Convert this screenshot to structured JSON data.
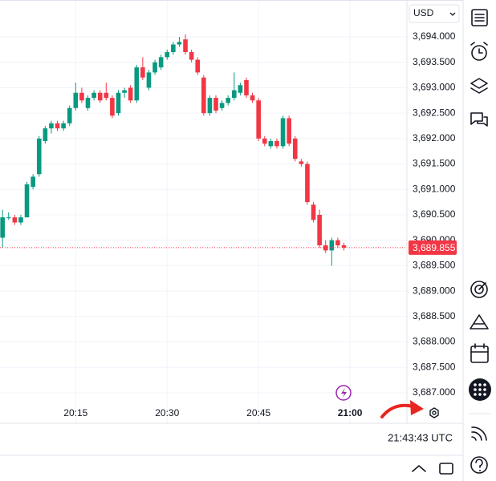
{
  "chart_data": {
    "type": "candlestick",
    "x": [
      "20:03",
      "20:04",
      "20:05",
      "20:06",
      "20:07",
      "20:08",
      "20:09",
      "20:10",
      "20:11",
      "20:12",
      "20:13",
      "20:14",
      "20:15",
      "20:16",
      "20:17",
      "20:18",
      "20:19",
      "20:20",
      "20:21",
      "20:22",
      "20:23",
      "20:24",
      "20:25",
      "20:26",
      "20:27",
      "20:28",
      "20:29",
      "20:30",
      "20:31",
      "20:32",
      "20:33",
      "20:34",
      "20:35",
      "20:36",
      "20:37",
      "20:38",
      "20:39",
      "20:40",
      "20:41",
      "20:42",
      "20:43",
      "20:44",
      "20:45",
      "20:46",
      "20:47",
      "20:48",
      "20:49",
      "20:50",
      "20:51",
      "20:52",
      "20:53",
      "20:54",
      "20:55",
      "20:56",
      "20:57",
      "20:58",
      "20:59"
    ],
    "open": [
      3690.05,
      3690.45,
      3690.45,
      3690.35,
      3690.45,
      3691.05,
      3691.3,
      3691.95,
      3692.2,
      3692.3,
      3692.2,
      3692.3,
      3692.6,
      3692.9,
      3692.6,
      3692.8,
      3692.9,
      3692.9,
      3692.8,
      3692.5,
      3692.9,
      3693.0,
      3692.75,
      3693.4,
      3693.0,
      3693.3,
      3693.4,
      3693.6,
      3693.7,
      3693.85,
      3693.95,
      3693.7,
      3693.55,
      3693.2,
      3692.5,
      3692.8,
      3692.6,
      3692.7,
      3692.8,
      3692.9,
      3693.15,
      3692.85,
      3692.75,
      3692.0,
      3691.85,
      3691.95,
      3691.85,
      3692.4,
      3692.0,
      3691.55,
      3691.5,
      3690.7,
      3690.5,
      3689.9,
      3689.8,
      3690.0,
      3689.9
    ],
    "high": [
      3690.6,
      3690.55,
      3690.5,
      3690.5,
      3691.15,
      3691.3,
      3692.05,
      3692.25,
      3692.35,
      3692.35,
      3692.35,
      3692.65,
      3693.1,
      3693.0,
      3692.85,
      3692.95,
      3692.95,
      3693.1,
      3692.85,
      3692.95,
      3693.0,
      3693.05,
      3693.45,
      3693.6,
      3693.35,
      3693.55,
      3693.65,
      3693.75,
      3693.9,
      3694.0,
      3694.05,
      3693.75,
      3693.6,
      3693.25,
      3692.85,
      3692.85,
      3692.75,
      3692.85,
      3693.3,
      3693.1,
      3693.2,
      3692.9,
      3692.8,
      3692.05,
      3692.0,
      3692.0,
      3692.45,
      3692.45,
      3692.05,
      3691.6,
      3691.55,
      3690.75,
      3690.6,
      3690.0,
      3690.05,
      3690.05,
      3689.95
    ],
    "low": [
      3689.85,
      3690.4,
      3690.3,
      3690.3,
      3690.45,
      3691.0,
      3691.25,
      3691.9,
      3692.1,
      3692.15,
      3692.15,
      3692.25,
      3692.55,
      3692.7,
      3692.55,
      3692.75,
      3692.7,
      3692.75,
      3692.4,
      3692.45,
      3692.8,
      3692.7,
      3692.7,
      3693.15,
      3692.95,
      3693.25,
      3693.35,
      3693.55,
      3693.65,
      3693.8,
      3693.65,
      3693.5,
      3693.25,
      3692.45,
      3692.45,
      3692.5,
      3692.55,
      3692.65,
      3692.75,
      3692.85,
      3692.8,
      3692.7,
      3691.95,
      3691.85,
      3691.8,
      3691.8,
      3691.8,
      3691.85,
      3691.55,
      3691.45,
      3690.7,
      3690.35,
      3689.85,
      3689.75,
      3689.5,
      3689.85,
      3689.8
    ],
    "close": [
      3690.45,
      3690.45,
      3690.35,
      3690.45,
      3691.1,
      3691.25,
      3692.0,
      3692.2,
      3692.3,
      3692.2,
      3692.3,
      3692.6,
      3692.9,
      3692.75,
      3692.8,
      3692.9,
      3692.75,
      3692.8,
      3692.45,
      3692.9,
      3692.95,
      3692.75,
      3693.4,
      3693.2,
      3693.3,
      3693.5,
      3693.6,
      3693.7,
      3693.85,
      3693.9,
      3693.7,
      3693.55,
      3693.3,
      3692.5,
      3692.8,
      3692.55,
      3692.7,
      3692.8,
      3692.95,
      3693.05,
      3692.85,
      3692.75,
      3692.0,
      3691.9,
      3691.95,
      3691.85,
      3692.4,
      3691.9,
      3691.6,
      3691.5,
      3690.75,
      3690.4,
      3689.9,
      3689.8,
      3690.0,
      3689.9,
      3689.855
    ],
    "up_color": "#089981",
    "down_color": "#f23645",
    "xlim": [
      "20:02:35",
      "21:09:20"
    ],
    "xticks": [
      "20:15",
      "20:30",
      "20:45",
      "21:00"
    ],
    "ylim": [
      3686.4,
      3694.725
    ],
    "yticks": [
      {
        "value": 3687,
        "label": "3,687.000"
      },
      {
        "value": 3687.5,
        "label": "3,687.500"
      },
      {
        "value": 3688,
        "label": "3,688.000"
      },
      {
        "value": 3688.5,
        "label": "3,688.500"
      },
      {
        "value": 3689,
        "label": "3,689.000"
      },
      {
        "value": 3689.5,
        "label": "3,689.500"
      },
      {
        "value": 3690,
        "label": "3,690.000"
      },
      {
        "value": 3690.5,
        "label": "3,690.500"
      },
      {
        "value": 3691,
        "label": "3,691.000"
      },
      {
        "value": 3691.5,
        "label": "3,691.500"
      },
      {
        "value": 3692,
        "label": "3,692.000"
      },
      {
        "value": 3692.5,
        "label": "3,692.500"
      },
      {
        "value": 3693,
        "label": "3,693.000"
      },
      {
        "value": 3693.5,
        "label": "3,693.500"
      },
      {
        "value": 3694,
        "label": "3,694.000"
      }
    ],
    "grid": true,
    "last_price": {
      "value": 3689.855,
      "label": "3,689.855"
    }
  },
  "currency": "USD",
  "clock": "21:43:43 UTC"
}
